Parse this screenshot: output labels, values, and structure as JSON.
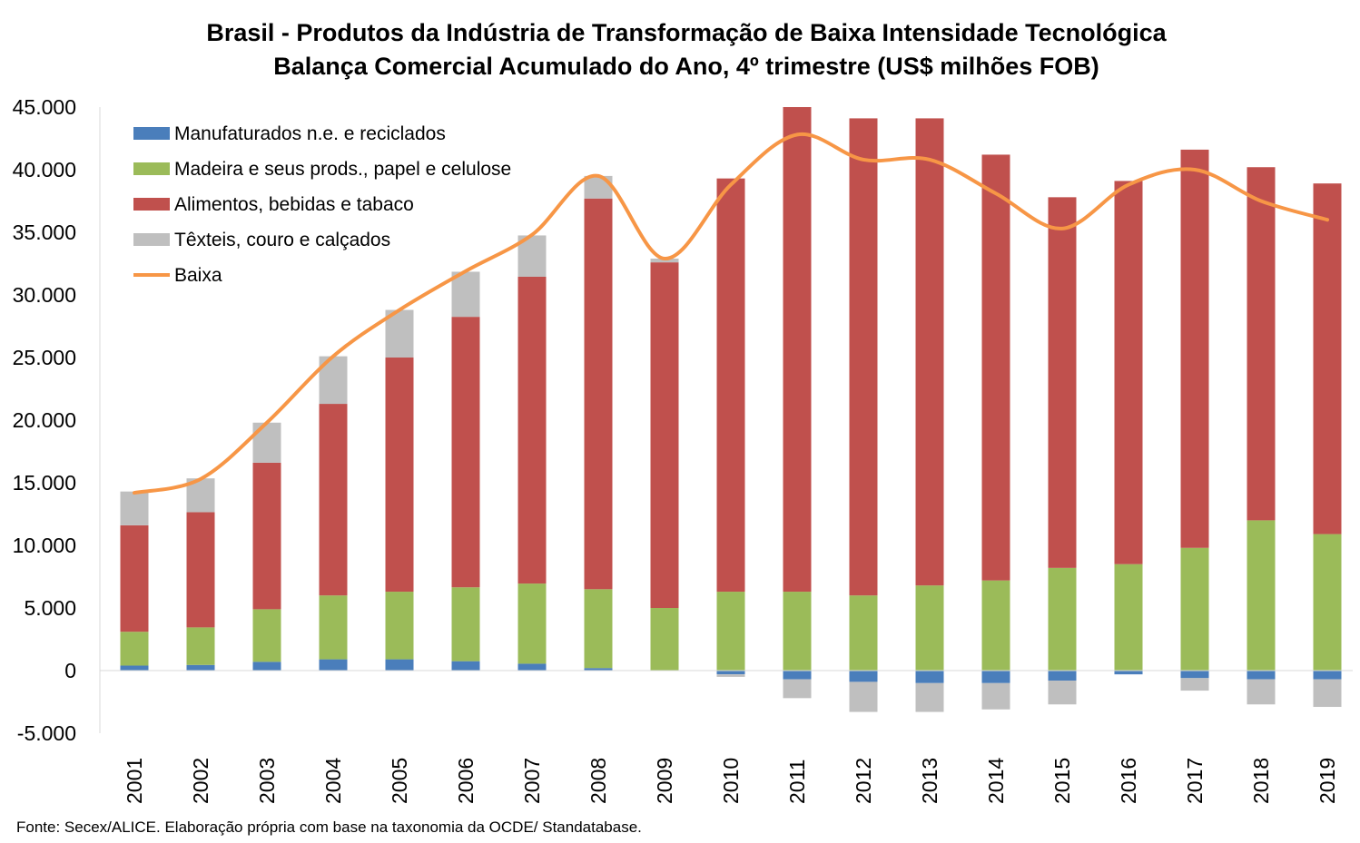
{
  "title_line1": "Brasil - Produtos da Indústria de Transformação de Baixa Intensidade Tecnológica",
  "title_line2": "Balança Comercial Acumulado do Ano, 4º trimestre (US$ milhões FOB)",
  "source": "Fonte: Secex/ALICE. Elaboração própria com base na taxonomia da OCDE/ Standatabase.",
  "chart_data": {
    "type": "bar",
    "stacked": true,
    "categories": [
      "2001",
      "2002",
      "2003",
      "2004",
      "2005",
      "2006",
      "2007",
      "2008",
      "2009",
      "2010",
      "2011",
      "2012",
      "2013",
      "2014",
      "2015",
      "2016",
      "2017",
      "2018",
      "2019"
    ],
    "ylim": [
      -5000,
      45000
    ],
    "yticks": [
      -5000,
      0,
      5000,
      10000,
      15000,
      20000,
      25000,
      30000,
      35000,
      40000,
      45000
    ],
    "ytick_labels": [
      "-5.000",
      "0",
      "5.000",
      "10.000",
      "15.000",
      "20.000",
      "25.000",
      "30.000",
      "35.000",
      "40.000",
      "45.000"
    ],
    "grid": false,
    "legend_position": "top-left",
    "series": [
      {
        "name": "Manufaturados n.e. e reciclados",
        "color": "#4a7ebb",
        "values": [
          400,
          450,
          700,
          900,
          900,
          750,
          550,
          200,
          0,
          -300,
          -700,
          -900,
          -1000,
          -1000,
          -800,
          -300,
          -600,
          -700,
          -700
        ]
      },
      {
        "name": "Madeira e seus prods., papel e celulose",
        "color": "#9bbb59",
        "values": [
          2700,
          3000,
          4200,
          5100,
          5400,
          5900,
          6400,
          6300,
          5000,
          6300,
          6300,
          6000,
          6800,
          7200,
          8200,
          8500,
          9800,
          12000,
          10900
        ]
      },
      {
        "name": "Alimentos, bebidas e tabaco",
        "color": "#c0504d",
        "values": [
          8500,
          9200,
          11700,
          15300,
          18700,
          21600,
          24500,
          31200,
          27600,
          33000,
          38700,
          38100,
          37300,
          34000,
          29600,
          30600,
          31800,
          28200,
          28000
        ]
      },
      {
        "name": "Têxteis, couro e calçados",
        "color": "#bfbfbf",
        "values": [
          2700,
          2700,
          3200,
          3800,
          3800,
          3600,
          3300,
          1800,
          300,
          -200,
          -1500,
          -2400,
          -2300,
          -2100,
          -1900,
          0,
          -1000,
          -2000,
          -2200
        ]
      },
      {
        "name": "Baixa",
        "type": "line",
        "color": "#f79646",
        "values": [
          14200,
          15300,
          19800,
          25100,
          28800,
          31900,
          34800,
          39500,
          32900,
          38800,
          42800,
          40800,
          40800,
          38100,
          35300,
          38800,
          40000,
          37500,
          36000
        ]
      }
    ]
  }
}
